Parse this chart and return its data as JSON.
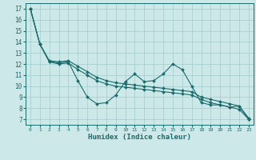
{
  "xlabel": "Humidex (Indice chaleur)",
  "bg_color": "#cce8e8",
  "grid_color": "#aacfcf",
  "line_color": "#1a6b6b",
  "xlim": [
    -0.5,
    23.5
  ],
  "ylim": [
    6.5,
    17.5
  ],
  "xticks": [
    0,
    1,
    2,
    3,
    4,
    5,
    6,
    7,
    8,
    9,
    10,
    11,
    12,
    13,
    14,
    15,
    16,
    17,
    18,
    19,
    20,
    21,
    22,
    23
  ],
  "yticks": [
    7,
    8,
    9,
    10,
    11,
    12,
    13,
    14,
    15,
    16,
    17
  ],
  "series": [
    {
      "comment": "zigzag line",
      "x": [
        0,
        1,
        2,
        3,
        4,
        5,
        6,
        7,
        8,
        9,
        10,
        11,
        12,
        13,
        14,
        15,
        16,
        17,
        18,
        19,
        20,
        21,
        22,
        23
      ],
      "y": [
        17,
        13.8,
        12.2,
        12.1,
        12.2,
        10.5,
        9.0,
        8.4,
        8.5,
        9.2,
        10.4,
        11.1,
        10.4,
        10.5,
        11.1,
        12.0,
        11.5,
        10.0,
        8.5,
        8.3,
        8.3,
        8.1,
        8.2,
        7.0
      ]
    },
    {
      "comment": "upper smooth line",
      "x": [
        0,
        1,
        2,
        3,
        4,
        5,
        6,
        7,
        8,
        9,
        10,
        11,
        12,
        13,
        14,
        15,
        16,
        17,
        18,
        19,
        20,
        21,
        22,
        23
      ],
      "y": [
        17,
        13.8,
        12.3,
        12.2,
        12.3,
        11.8,
        11.3,
        10.8,
        10.5,
        10.3,
        10.2,
        10.1,
        10.0,
        9.9,
        9.8,
        9.7,
        9.6,
        9.5,
        9.0,
        8.8,
        8.6,
        8.4,
        8.2,
        7.1
      ]
    },
    {
      "comment": "lower smooth line",
      "x": [
        0,
        1,
        2,
        3,
        4,
        5,
        6,
        7,
        8,
        9,
        10,
        11,
        12,
        13,
        14,
        15,
        16,
        17,
        18,
        19,
        20,
        21,
        22,
        23
      ],
      "y": [
        17,
        13.8,
        12.2,
        12.0,
        12.1,
        11.5,
        11.0,
        10.5,
        10.2,
        10.0,
        9.9,
        9.8,
        9.7,
        9.6,
        9.5,
        9.4,
        9.3,
        9.2,
        8.8,
        8.5,
        8.3,
        8.1,
        7.9,
        7.0
      ]
    }
  ]
}
